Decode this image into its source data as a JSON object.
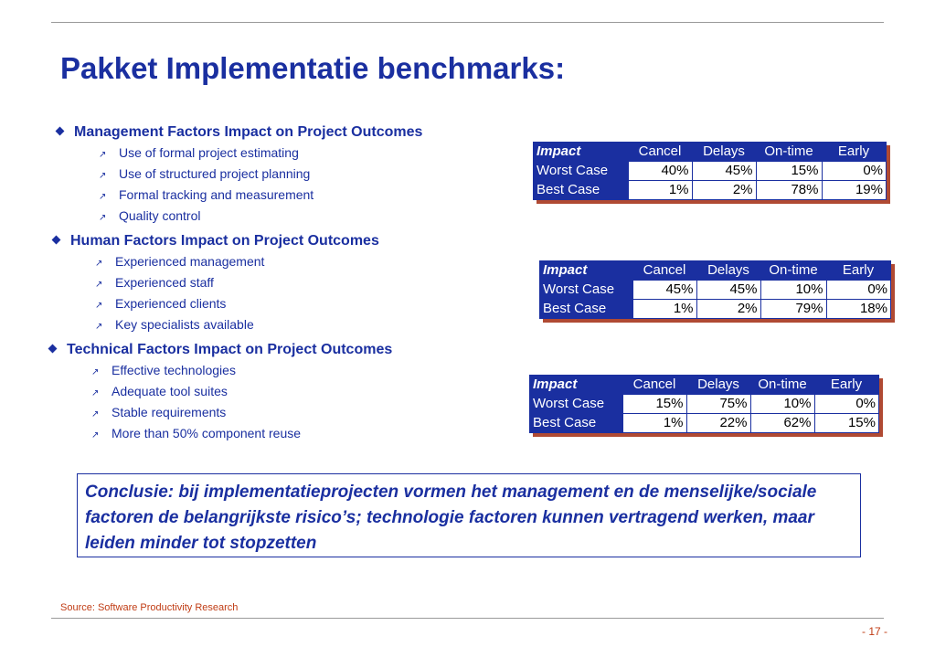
{
  "title": "Pakket Implementatie benchmarks:",
  "sections": [
    {
      "heading": "Management Factors Impact on Project Outcomes",
      "items": [
        "Use of formal project estimating",
        "Use of structured project planning",
        "Formal tracking and measurement",
        "Quality control"
      ],
      "table": {
        "headers": [
          "Impact",
          "Cancel",
          "Delays",
          "On-time",
          "Early"
        ],
        "rows": [
          {
            "label": "Worst Case",
            "values": [
              "40%",
              "45%",
              "15%",
              "0%"
            ]
          },
          {
            "label": "Best Case",
            "values": [
              "1%",
              "2%",
              "78%",
              "19%"
            ]
          }
        ]
      }
    },
    {
      "heading": "Human Factors Impact on Project Outcomes",
      "items": [
        "Experienced management",
        "Experienced staff",
        "Experienced clients",
        "Key specialists available"
      ],
      "table": {
        "headers": [
          "Impact",
          "Cancel",
          "Delays",
          "On-time",
          "Early"
        ],
        "rows": [
          {
            "label": "Worst Case",
            "values": [
              "45%",
              "45%",
              "10%",
              "0%"
            ]
          },
          {
            "label": "Best Case",
            "values": [
              "1%",
              "2%",
              "79%",
              "18%"
            ]
          }
        ]
      }
    },
    {
      "heading": "Technical Factors Impact on Project Outcomes",
      "items": [
        "Effective technologies",
        "Adequate tool suites",
        "Stable requirements",
        "More than 50% component reuse"
      ],
      "table": {
        "headers": [
          "Impact",
          "Cancel",
          "Delays",
          "On-time",
          "Early"
        ],
        "rows": [
          {
            "label": "Worst Case",
            "values": [
              "15%",
              "75%",
              "10%",
              "0%"
            ]
          },
          {
            "label": "Best Case",
            "values": [
              "1%",
              "22%",
              "62%",
              "15%"
            ]
          }
        ]
      }
    }
  ],
  "conclusion": "Conclusie:  bij implementatieprojecten vormen het management en de menselijke/sociale factoren de belangrijkste risico’s; technologie factoren kunnen vertragend werken, maar leiden minder tot stopzetten",
  "source": "Source: Software Productivity Research",
  "page_number": "- 17 -",
  "colors": {
    "accent": "#1a2fa0",
    "shadow": "#b04a33",
    "source_text": "#c03c14",
    "rule": "#9a9a9a"
  }
}
